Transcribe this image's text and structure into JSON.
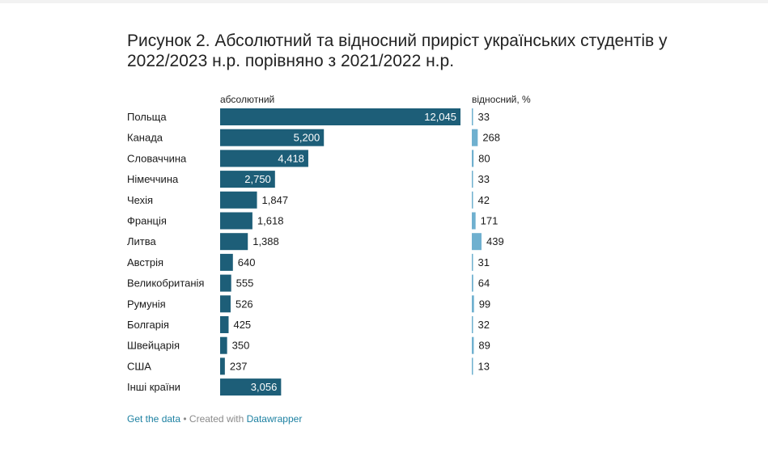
{
  "title": "Рисунок 2. Абсолютний та відносний приріст українських студентів у 2022/2023 н.р. порівняно з 2021/2022 н.р.",
  "footer": {
    "get_data": "Get the data",
    "separator": " • Created with ",
    "datawrapper": "Datawrapper"
  },
  "colors": {
    "absolute_bar": "#1d5e78",
    "relative_bar": "#6fb0cf",
    "text": "#1a1a1a",
    "label_inside": "#ffffff"
  },
  "chart_data": {
    "type": "bar",
    "orientation": "horizontal",
    "categories": [
      "Польща",
      "Канада",
      "Словаччина",
      "Німеччина",
      "Чехія",
      "Франція",
      "Литва",
      "Австрія",
      "Великобританія",
      "Румунія",
      "Болгарія",
      "Швейцарія",
      "США",
      "Інші країни"
    ],
    "series": [
      {
        "name": "абсолютний",
        "values": [
          12045,
          5200,
          4418,
          2750,
          1847,
          1618,
          1388,
          640,
          555,
          526,
          425,
          350,
          237,
          3056
        ],
        "labels": [
          "12,045",
          "5,200",
          "4,418",
          "2,750",
          "1,847",
          "1,618",
          "1,388",
          "640",
          "555",
          "526",
          "425",
          "350",
          "237",
          "3,056"
        ]
      },
      {
        "name": "відносний, %",
        "values": [
          33,
          268,
          80,
          33,
          42,
          171,
          439,
          31,
          64,
          99,
          32,
          89,
          13,
          null
        ],
        "labels": [
          "33",
          "268",
          "80",
          "33",
          "42",
          "171",
          "439",
          "31",
          "64",
          "99",
          "32",
          "89",
          "13",
          ""
        ]
      }
    ],
    "xlim_absolute": [
      0,
      12045
    ],
    "xlim_relative": [
      0,
      439
    ],
    "grid": false,
    "legend": "column headers"
  }
}
